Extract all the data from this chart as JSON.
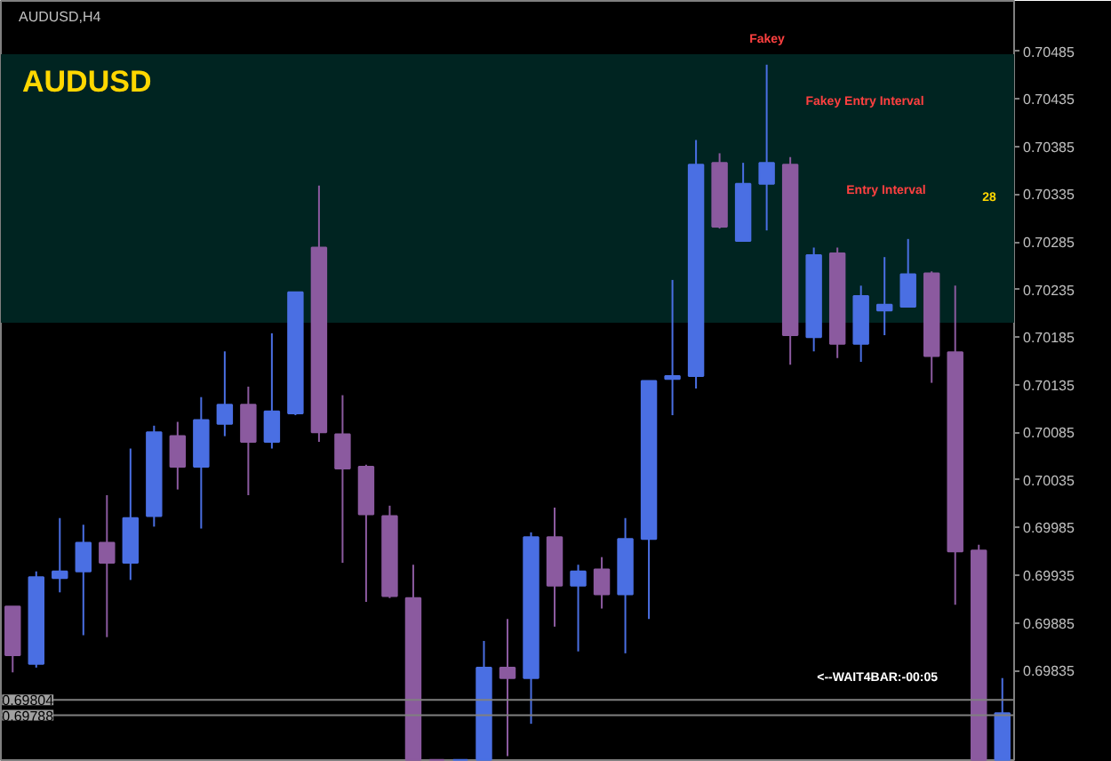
{
  "chart_data": {
    "type": "candlestick",
    "title": "AUDUSD",
    "categories": [
      null,
      null,
      null,
      null,
      null,
      null,
      null,
      null,
      null,
      null,
      null,
      null,
      null,
      null,
      null,
      null,
      null,
      null,
      null,
      null,
      null,
      null,
      null,
      null,
      null,
      null,
      null,
      null,
      null,
      null,
      null,
      null,
      null,
      null,
      null,
      null,
      null,
      null,
      null,
      null,
      null,
      null,
      null
    ],
    "ohlc": [
      [
        0.69902,
        0.69902,
        0.69833,
        0.69851
      ],
      [
        0.69842,
        0.69939,
        0.69838,
        0.69933
      ],
      [
        0.69932,
        0.69995,
        0.69917,
        0.69939
      ],
      [
        0.69939,
        0.69988,
        0.69872,
        0.69969
      ],
      [
        0.69969,
        0.70019,
        0.6987,
        0.69948
      ],
      [
        0.69948,
        0.70068,
        0.6993,
        0.69995
      ],
      [
        0.69997,
        0.70092,
        0.69986,
        0.70085
      ],
      [
        0.70081,
        0.70096,
        0.70025,
        0.70049
      ],
      [
        0.70049,
        0.70122,
        0.69984,
        0.70098
      ],
      [
        0.70094,
        0.7017,
        0.70081,
        0.70114
      ],
      [
        0.70114,
        0.70133,
        0.70019,
        0.70075
      ],
      [
        0.70075,
        0.70189,
        0.70068,
        0.70107
      ],
      [
        0.70105,
        0.70232,
        0.70103,
        0.70232
      ],
      [
        0.70279,
        0.70344,
        0.70075,
        0.70085
      ],
      [
        0.70083,
        0.70124,
        0.69948,
        0.70047
      ],
      [
        0.70049,
        0.70051,
        0.69907,
        0.69999
      ],
      [
        0.69997,
        0.70008,
        0.69911,
        0.69913
      ],
      [
        0.69911,
        0.69946,
        0.69741,
        0.69741
      ],
      [
        0.69741,
        0.69741,
        0.69741,
        0.69741
      ],
      [
        0.69741,
        0.69741,
        0.69741,
        0.69741
      ],
      [
        0.69741,
        0.69866,
        0.69741,
        0.69838
      ],
      [
        0.69838,
        0.69889,
        0.69745,
        0.69827
      ],
      [
        0.69827,
        0.6998,
        0.69779,
        0.69975
      ],
      [
        0.69975,
        0.70006,
        0.69881,
        0.69924
      ],
      [
        0.69924,
        0.69946,
        0.69855,
        0.69939
      ],
      [
        0.69941,
        0.69954,
        0.699,
        0.69915
      ],
      [
        0.69915,
        0.69995,
        0.69853,
        0.69973
      ],
      [
        0.69973,
        0.70139,
        0.69889,
        0.70139
      ],
      [
        0.70141,
        0.70245,
        0.70103,
        0.70144
      ],
      [
        0.70144,
        0.70392,
        0.70131,
        0.70366
      ],
      [
        0.70368,
        0.70378,
        0.70299,
        0.70301
      ],
      [
        0.70286,
        0.70368,
        0.70286,
        0.70346
      ],
      [
        0.70346,
        0.70471,
        0.70297,
        0.70368
      ],
      [
        0.70366,
        0.70374,
        0.70156,
        0.70187
      ],
      [
        0.70185,
        0.70279,
        0.7017,
        0.70271
      ],
      [
        0.70273,
        0.70279,
        0.70163,
        0.70178
      ],
      [
        0.70178,
        0.70239,
        0.70159,
        0.70228
      ],
      [
        0.70213,
        0.70269,
        0.70187,
        0.70219
      ],
      [
        0.70217,
        0.70288,
        0.70217,
        0.70251
      ],
      [
        0.70252,
        0.70254,
        0.70137,
        0.70165
      ],
      [
        0.70169,
        0.70239,
        0.69904,
        0.6996
      ],
      [
        0.69961,
        0.69967,
        0.69741,
        0.69741
      ],
      [
        0.69741,
        0.69827,
        0.69741,
        0.6979
      ]
    ],
    "colors": [
      "#8b5a9f",
      "#4a6fe3",
      "#4a6fe3",
      "#4a6fe3",
      "#8b5a9f",
      "#4a6fe3",
      "#4a6fe3",
      "#8b5a9f",
      "#4a6fe3",
      "#4a6fe3",
      "#8b5a9f",
      "#4a6fe3",
      "#4a6fe3",
      "#8b5a9f",
      "#8b5a9f",
      "#8b5a9f",
      "#8b5a9f",
      "#8b5a9f",
      "#8b5a9f",
      "#4a6fe3",
      "#4a6fe3",
      "#8b5a9f",
      "#4a6fe3",
      "#8b5a9f",
      "#4a6fe3",
      "#8b5a9f",
      "#4a6fe3",
      "#4a6fe3",
      "#4a6fe3",
      "#4a6fe3",
      "#8b5a9f",
      "#4a6fe3",
      "#4a6fe3",
      "#8b5a9f",
      "#4a6fe3",
      "#8b5a9f",
      "#4a6fe3",
      "#4a6fe3",
      "#4a6fe3",
      "#8b5a9f",
      "#8b5a9f",
      "#8b5a9f",
      "#4a6fe3"
    ],
    "ylim": [
      0.69739,
      0.70538
    ],
    "yticks": [
      "0.70485",
      "0.70435",
      "0.70385",
      "0.70335",
      "0.70285",
      "0.70235",
      "0.70185",
      "0.70135",
      "0.70085",
      "0.70035",
      "0.69985",
      "0.69935",
      "0.69885",
      "0.69835"
    ],
    "tick_labels": "y",
    "bands": [
      {
        "axis": "y",
        "from": 0.702,
        "to": 0.70482,
        "color": "#002421"
      }
    ],
    "ref_lines": [
      {
        "axis": "y",
        "value": 0.69804,
        "label": "0.69804",
        "color": "#808080"
      },
      {
        "axis": "y",
        "value": 0.69788,
        "label": "0.69788",
        "color": "#808080"
      }
    ],
    "annotations": [
      "AUDUSD,H4",
      "Fakey",
      "Fakey Entry Interval",
      "Entry Interval",
      "28",
      "<--WAIT4BAR:-00:05"
    ]
  }
}
